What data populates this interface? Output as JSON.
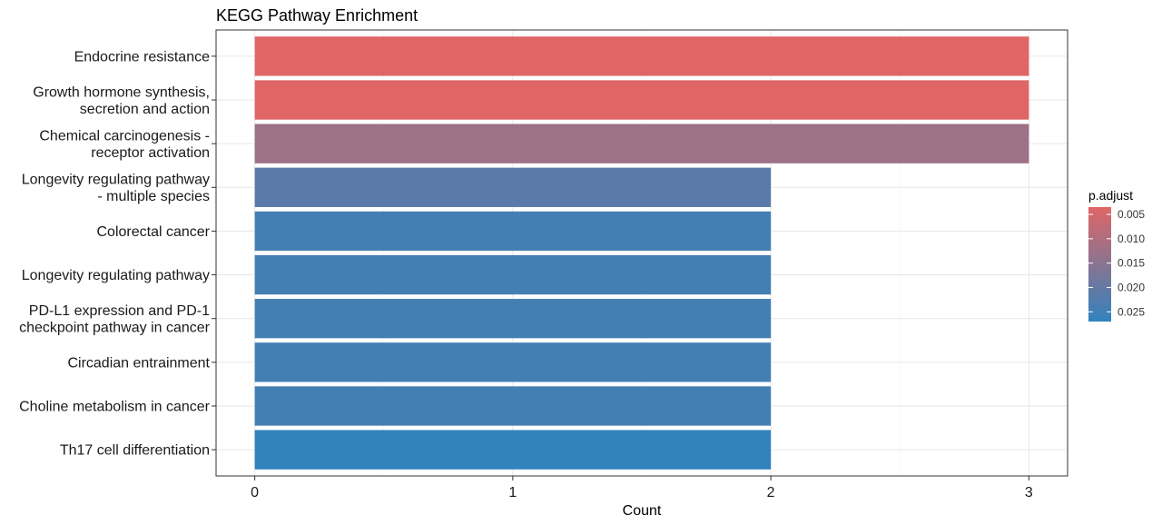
{
  "chart_data": {
    "type": "bar",
    "orientation": "horizontal",
    "title": "KEGG Pathway Enrichment",
    "xlabel": "Count",
    "ylabel": "",
    "xlim": [
      0,
      3.15
    ],
    "x_ticks": [
      "0",
      "1",
      "2",
      "3"
    ],
    "grid": true,
    "categories": [
      [
        "Endocrine resistance"
      ],
      [
        "Growth hormone synthesis,",
        "secretion and action"
      ],
      [
        "Chemical carcinogenesis -",
        "receptor activation"
      ],
      [
        "Longevity regulating pathway",
        "- multiple species"
      ],
      [
        "Colorectal cancer"
      ],
      [
        "Longevity regulating pathway"
      ],
      [
        "PD-L1 expression and PD-1",
        "checkpoint pathway in cancer"
      ],
      [
        "Circadian entrainment"
      ],
      [
        "Choline metabolism in cancer"
      ],
      [
        "Th17 cell differentiation"
      ]
    ],
    "values": [
      3,
      3,
      3,
      2,
      2,
      2,
      2,
      2,
      2,
      2
    ],
    "p_adjust": [
      0.0035,
      0.0035,
      0.0125,
      0.0215,
      0.0245,
      0.0245,
      0.0245,
      0.0245,
      0.0245,
      0.027
    ],
    "color_scale": {
      "title": "p.adjust",
      "low_color": "#E06666",
      "high_color": "#3182BD",
      "domain": [
        0.0035,
        0.027
      ],
      "ticks": [
        "0.005",
        "0.010",
        "0.015",
        "0.020",
        "0.025"
      ],
      "tick_values": [
        0.005,
        0.01,
        0.015,
        0.02,
        0.025
      ],
      "placement": "right"
    }
  }
}
